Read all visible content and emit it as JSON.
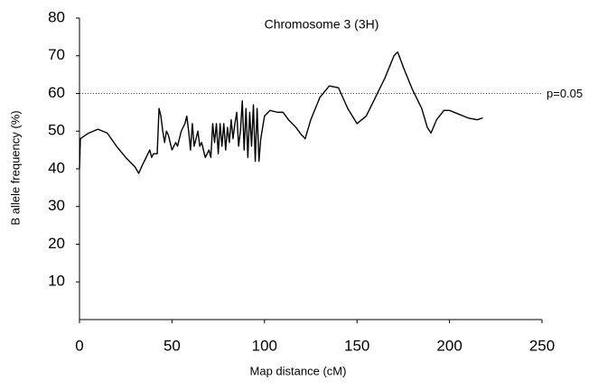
{
  "chart_data": {
    "type": "line",
    "title": "Chromosome 3 (3H)",
    "x_label": "Map distance (cM)",
    "y_label": "B allele frequency (%)",
    "color": "#000000",
    "x": [
      0,
      0.5,
      5,
      10,
      15,
      20,
      25,
      30,
      32,
      34,
      37,
      38,
      39,
      40,
      42,
      43,
      44,
      45,
      46,
      47,
      48,
      50,
      52,
      53,
      55,
      57,
      58,
      59,
      60,
      61,
      62,
      64,
      65,
      66,
      68,
      70,
      71,
      72,
      73,
      74,
      75,
      76,
      77,
      78,
      79,
      80,
      81,
      82,
      83,
      84,
      85,
      86,
      87,
      88,
      89,
      90,
      91,
      92,
      93,
      94,
      95,
      96,
      97,
      98,
      100,
      103,
      107,
      110,
      113,
      117,
      120,
      122,
      125,
      130,
      135,
      140,
      145,
      150,
      155,
      160,
      165,
      170,
      172,
      175,
      180,
      185,
      188,
      190,
      193,
      197,
      200,
      205,
      210,
      215,
      218
    ],
    "values": [
      40,
      48,
      49.5,
      50.5,
      49.5,
      46,
      43,
      40.5,
      38.8,
      41,
      44,
      45,
      43,
      44,
      44,
      56,
      54,
      50,
      47,
      50,
      49,
      45,
      47,
      46,
      50,
      52,
      54,
      50,
      45,
      52,
      46,
      50,
      46,
      47,
      43,
      45,
      43,
      52,
      47,
      52,
      44,
      52,
      46,
      52,
      45,
      51,
      47,
      53,
      48,
      52,
      55,
      46,
      50,
      58,
      45,
      56,
      43,
      55,
      46,
      57,
      42,
      56,
      42,
      48,
      54,
      55.5,
      55,
      55,
      53,
      51,
      49,
      48,
      53,
      59,
      62,
      61.5,
      56,
      52,
      54,
      59,
      64,
      70,
      71,
      67,
      61,
      56,
      51,
      49.5,
      53,
      55.5,
      55.5,
      54.5,
      53.5,
      53,
      53.5
    ],
    "xlim": [
      0,
      250
    ],
    "xticks": [
      0,
      50,
      100,
      150,
      200,
      250
    ],
    "ylim": [
      0,
      80
    ],
    "yticks": [
      10,
      20,
      30,
      40,
      50,
      60,
      70,
      80
    ],
    "threshold": {
      "value": 60,
      "label": "p=0.05"
    }
  }
}
